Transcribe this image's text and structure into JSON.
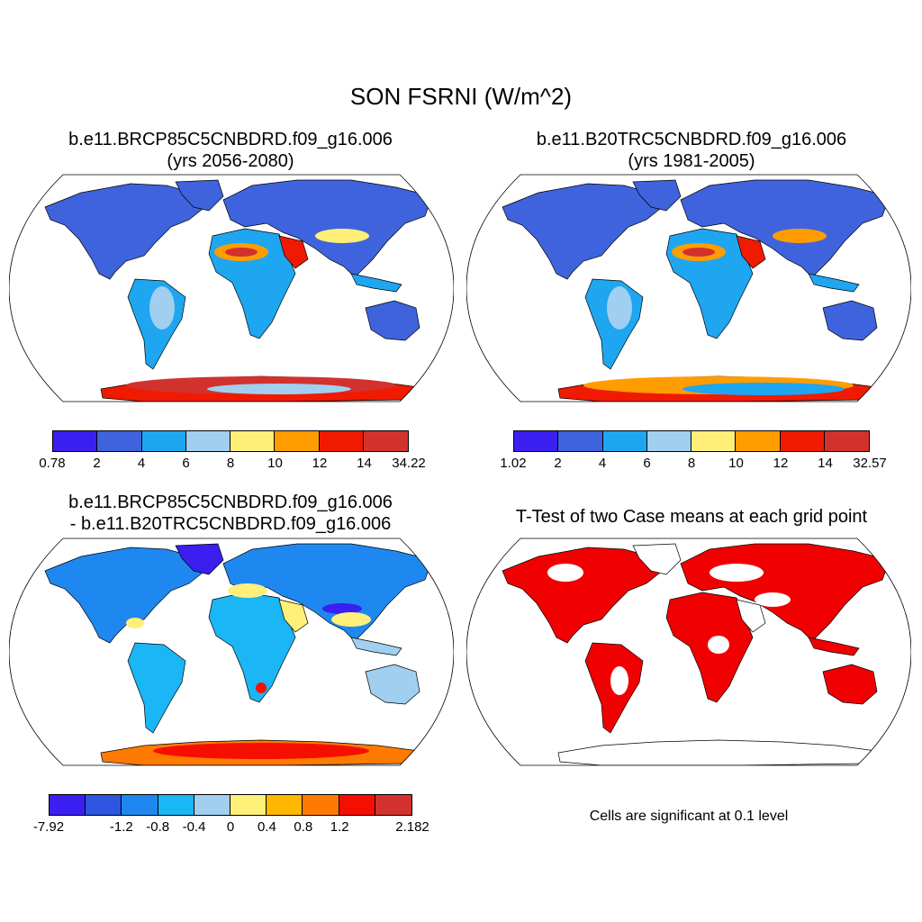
{
  "title": "SON FSRNI (W/m^2)",
  "panels": [
    {
      "title_line1": "b.e11.BRCP85C5CNBDRD.f09_g16.006",
      "title_line2": "(yrs 2056-2080)",
      "colorbar": {
        "colors": [
          "#3a1ff0",
          "#3e63dd",
          "#1ea6f0",
          "#a0cff0",
          "#ffef78",
          "#ff9d00",
          "#f01a00",
          "#d2322e"
        ],
        "labels": [
          "0.78",
          "2",
          "4",
          "6",
          "8",
          "10",
          "12",
          "14",
          "34.22"
        ]
      }
    },
    {
      "title_line1": "b.e11.B20TRC5CNBDRD.f09_g16.006",
      "title_line2": "(yrs 1981-2005)",
      "colorbar": {
        "colors": [
          "#3a1ff0",
          "#3e63dd",
          "#1ea6f0",
          "#a0cff0",
          "#ffef78",
          "#ff9d00",
          "#f01a00",
          "#d2322e"
        ],
        "labels": [
          "1.02",
          "2",
          "4",
          "6",
          "8",
          "10",
          "12",
          "14",
          "32.57"
        ]
      }
    },
    {
      "title_line1": "b.e11.BRCP85C5CNBDRD.f09_g16.006",
      "title_line2": "- b.e11.B20TRC5CNBDRD.f09_g16.006",
      "colorbar": {
        "colors": [
          "#3a1ff0",
          "#2d55e0",
          "#1e88f0",
          "#1ab6f5",
          "#a0cff0",
          "#fff07a",
          "#ffb700",
          "#ff7a00",
          "#f50f00",
          "#d2322e"
        ],
        "labels": [
          "-7.92",
          "",
          "-1.2",
          "-0.8",
          "-0.4",
          "0",
          "0.4",
          "0.8",
          "1.2",
          "",
          "2.182"
        ]
      }
    },
    {
      "title_line1": "T-Test of two Case means at each grid point",
      "title_line2": ""
    }
  ],
  "significance_note": "Cells are significant at 0.1 level",
  "colors": {
    "significant": "#f00000",
    "coast": "#000000"
  }
}
